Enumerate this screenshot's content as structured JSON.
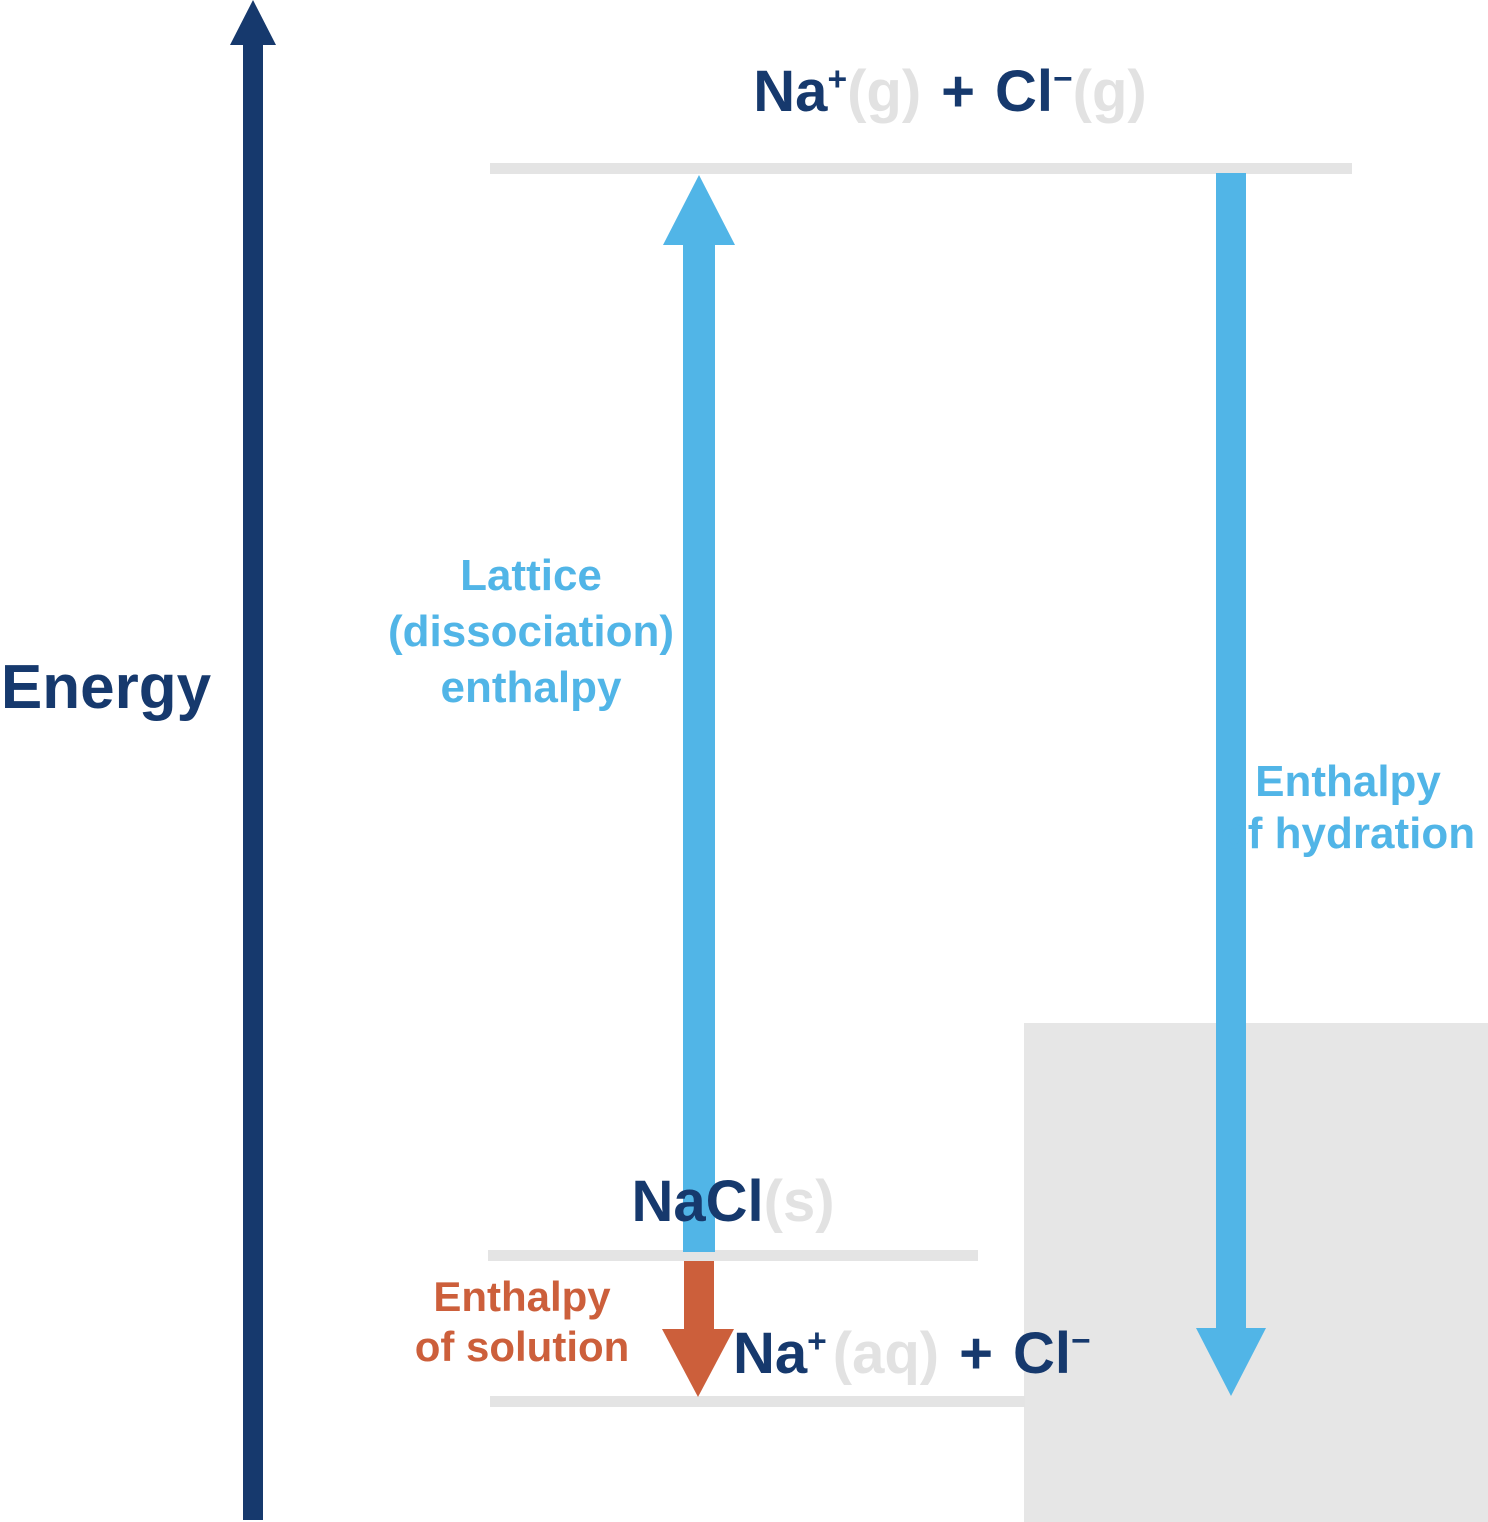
{
  "colors": {
    "navy": "#16396d",
    "light_blue": "#51b5e7",
    "orange": "#cc5f3b",
    "gray_state_text": "#e2e2e2",
    "gray_level_line": "#e4e4e4",
    "gray_box": "#e6e6e6"
  },
  "axis": {
    "label": "Energy",
    "direction": "up"
  },
  "levels": {
    "gaseous_ions": {
      "na": "Na",
      "na_charge": "+",
      "na_state": "(g)",
      "plus": "+",
      "cl": "Cl",
      "cl_charge": "−",
      "cl_state": "(g)"
    },
    "solid": {
      "formula": "NaCl",
      "state": "(s)"
    },
    "aqueous_ions": {
      "na": "Na",
      "na_charge": "+",
      "na_state": "(aq)",
      "plus": "+",
      "cl": "Cl",
      "cl_charge": "−"
    }
  },
  "arrows": {
    "lattice": {
      "direction": "up",
      "color": "light_blue",
      "label_line1": "Lattice",
      "label_line2": "(dissociation)",
      "label_line3": "enthalpy"
    },
    "hydration": {
      "direction": "down",
      "color": "light_blue",
      "label_line1": "Enthalpy",
      "label_line2": "of hydration"
    },
    "solution": {
      "direction": "down",
      "color": "orange",
      "label_line1": "Enthalpy",
      "label_line2": "of solution"
    }
  }
}
